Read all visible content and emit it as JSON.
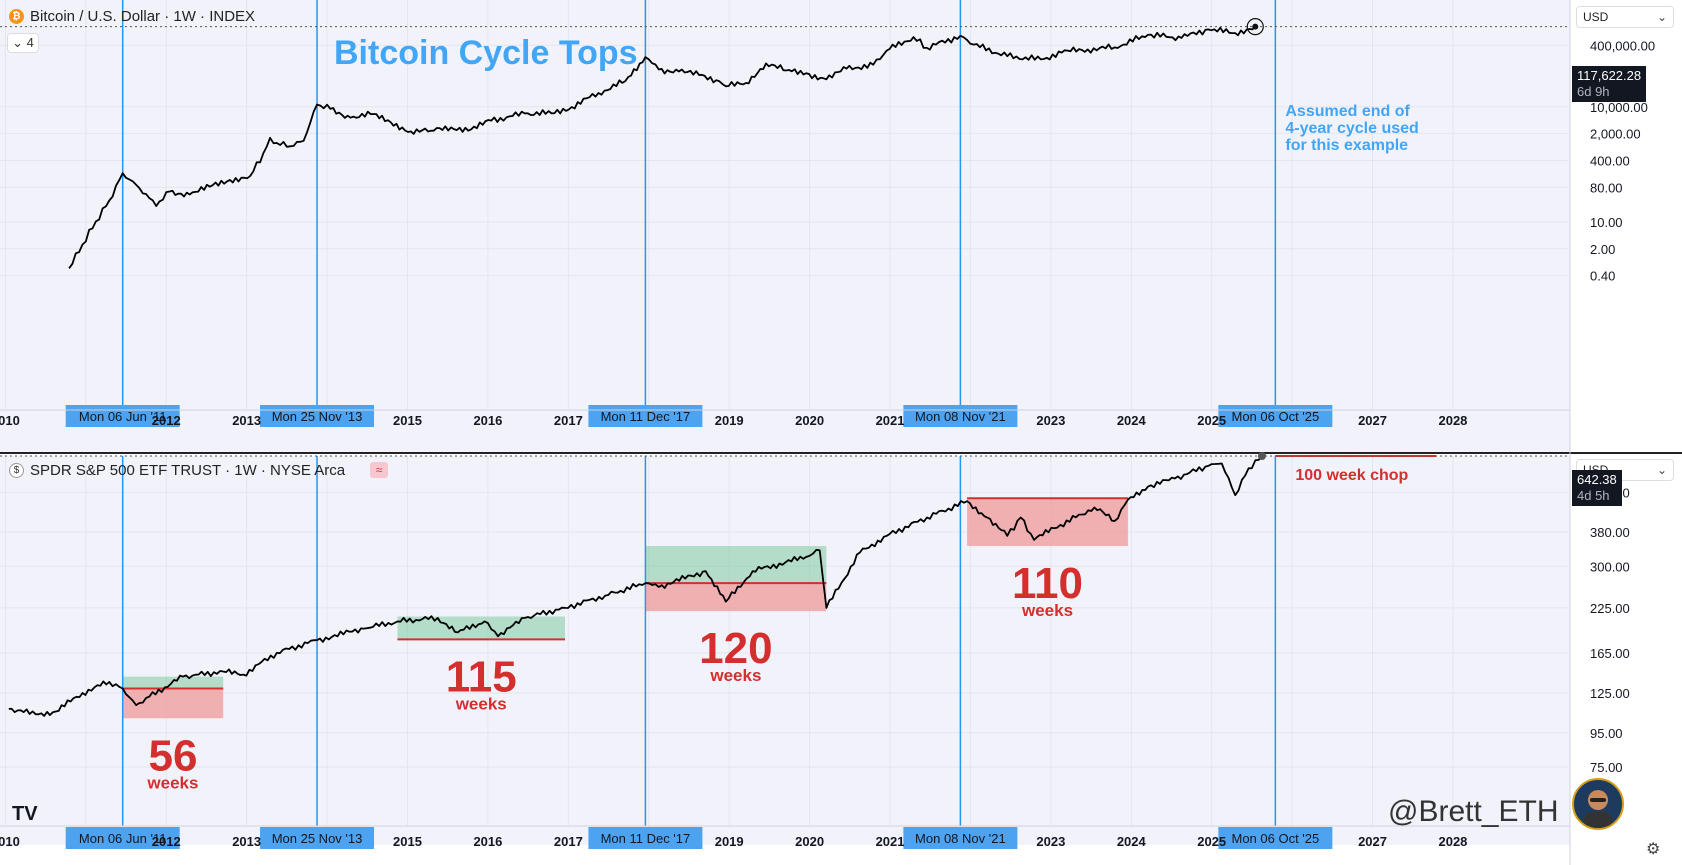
{
  "chart_data": [
    {
      "type": "line",
      "symbol": "Bitcoin / U.S. Dollar · 1W · INDEX",
      "title": "Bitcoin Cycle Tops",
      "y_scale": "log",
      "y_ticks": [
        "400,000.00",
        "10,000.00",
        "2,000.00",
        "400.00",
        "80.00",
        "10.00",
        "2.00",
        "0.40"
      ],
      "x_ticks": [
        "2010",
        "2012",
        "2013",
        "2015",
        "2016",
        "2017",
        "2019",
        "2020",
        "2021",
        "2023",
        "2024",
        "2025",
        "2027",
        "2028"
      ],
      "last_price": "117,622.28",
      "countdown": "6d 9h",
      "currency": "USD",
      "series_points": [
        [
          "2010-10",
          0.06
        ],
        [
          "2010-12",
          0.25
        ],
        [
          "2011-02",
          1.0
        ],
        [
          "2011-04",
          3.5
        ],
        [
          "2011-06",
          18
        ],
        [
          "2011-08",
          9
        ],
        [
          "2011-10",
          4
        ],
        [
          "2011-11",
          2.5
        ],
        [
          "2012-01",
          6
        ],
        [
          "2012-04",
          5
        ],
        [
          "2012-07",
          8
        ],
        [
          "2012-10",
          12
        ],
        [
          "2013-01",
          15
        ],
        [
          "2013-03",
          60
        ],
        [
          "2013-04",
          150
        ],
        [
          "2013-05",
          110
        ],
        [
          "2013-07",
          90
        ],
        [
          "2013-09",
          125
        ],
        [
          "2013-11",
          1100
        ],
        [
          "2014-01",
          850
        ],
        [
          "2014-04",
          500
        ],
        [
          "2014-07",
          620
        ],
        [
          "2014-10",
          380
        ],
        [
          "2015-01",
          220
        ],
        [
          "2015-04",
          230
        ],
        [
          "2015-07",
          280
        ],
        [
          "2015-10",
          250
        ],
        [
          "2016-01",
          420
        ],
        [
          "2016-06",
          650
        ],
        [
          "2016-10",
          650
        ],
        [
          "2017-01",
          950
        ],
        [
          "2017-05",
          2200
        ],
        [
          "2017-09",
          4500
        ],
        [
          "2017-12",
          19000
        ],
        [
          "2018-02",
          9000
        ],
        [
          "2018-05",
          8000
        ],
        [
          "2018-08",
          6500
        ],
        [
          "2018-11",
          4500
        ],
        [
          "2018-12",
          3300
        ],
        [
          "2019-03",
          4000
        ],
        [
          "2019-06",
          13000
        ],
        [
          "2019-09",
          8500
        ],
        [
          "2019-12",
          7200
        ],
        [
          "2020-03",
          5000
        ],
        [
          "2020-06",
          9500
        ],
        [
          "2020-10",
          12000
        ],
        [
          "2020-12",
          28000
        ],
        [
          "2021-04",
          63000
        ],
        [
          "2021-06",
          33000
        ],
        [
          "2021-11",
          68000
        ],
        [
          "2022-01",
          40000
        ],
        [
          "2022-06",
          20000
        ],
        [
          "2022-11",
          16500
        ],
        [
          "2023-03",
          28000
        ],
        [
          "2023-06",
          30000
        ],
        [
          "2023-10",
          34000
        ],
        [
          "2024-03",
          72000
        ],
        [
          "2024-08",
          60000
        ],
        [
          "2024-12",
          100000
        ],
        [
          "2025-04",
          80000
        ],
        [
          "2025-07",
          117622
        ]
      ]
    },
    {
      "type": "line",
      "symbol": "SPDR S&P 500 ETF TRUST · 1W · NYSE Arca",
      "y_ticks": [
        "642.38",
        "500.00",
        "380.00",
        "300.00",
        "225.00",
        "165.00",
        "125.00",
        "95.00",
        "75.00"
      ],
      "x_ticks": [
        "2010",
        "2012",
        "2013",
        "2015",
        "2016",
        "2017",
        "2019",
        "2020",
        "2021",
        "2023",
        "2024",
        "2025",
        "2027",
        "2028"
      ],
      "countdown": "4d 5h",
      "currency": "USD",
      "series_points": [
        [
          "2010-01",
          112
        ],
        [
          "2010-05",
          108
        ],
        [
          "2010-08",
          110
        ],
        [
          "2010-12",
          125
        ],
        [
          "2011-04",
          135
        ],
        [
          "2011-06",
          129
        ],
        [
          "2011-08",
          115
        ],
        [
          "2011-10",
          122
        ],
        [
          "2012-03",
          140
        ],
        [
          "2012-09",
          145
        ],
        [
          "2012-12",
          142
        ],
        [
          "2013-05",
          165
        ],
        [
          "2013-11",
          180
        ],
        [
          "2014-06",
          195
        ],
        [
          "2014-11",
          205
        ],
        [
          "2015-05",
          210
        ],
        [
          "2015-08",
          190
        ],
        [
          "2015-12",
          205
        ],
        [
          "2016-02",
          185
        ],
        [
          "2016-06",
          210
        ],
        [
          "2016-12",
          225
        ],
        [
          "2017-06",
          245
        ],
        [
          "2017-12",
          267
        ],
        [
          "2018-02",
          260
        ],
        [
          "2018-09",
          290
        ],
        [
          "2018-12",
          235
        ],
        [
          "2019-04",
          290
        ],
        [
          "2019-12",
          320
        ],
        [
          "2020-02",
          335
        ],
        [
          "2020-03",
          225
        ],
        [
          "2020-08",
          330
        ],
        [
          "2020-12",
          370
        ],
        [
          "2021-06",
          420
        ],
        [
          "2021-12",
          470
        ],
        [
          "2022-03",
          420
        ],
        [
          "2022-06",
          370
        ],
        [
          "2022-08",
          420
        ],
        [
          "2022-10",
          360
        ],
        [
          "2023-01",
          390
        ],
        [
          "2023-07",
          450
        ],
        [
          "2023-10",
          410
        ],
        [
          "2023-12",
          475
        ],
        [
          "2024-03",
          520
        ],
        [
          "2024-07",
          550
        ],
        [
          "2024-12",
          600
        ],
        [
          "2025-02",
          610
        ],
        [
          "2025-04",
          490
        ],
        [
          "2025-06",
          590
        ],
        [
          "2025-08",
          642.38
        ]
      ],
      "chop_ranges": [
        {
          "start": "2011-06",
          "end": "2012-09",
          "weeks": "56",
          "level": 129,
          "high": 140,
          "low": 105
        },
        {
          "start": "2014-11",
          "end": "2016-12",
          "weeks": "115",
          "level": 181,
          "high": 212,
          "low": 181
        },
        {
          "start": "2017-12",
          "end": "2020-03",
          "weeks": "120",
          "level": 267,
          "high": 345,
          "low": 220
        },
        {
          "start": "2021-12",
          "end": "2023-12",
          "weeks": "110",
          "level": 480,
          "high": 480,
          "low": 345
        },
        {
          "start": "2025-10",
          "end": "2027-10",
          "label": "100 week chop",
          "level": 642.38
        }
      ],
      "weeks_unit": "weeks"
    }
  ],
  "cycle_markers": [
    "Mon 06 Jun '11",
    "Mon 25 Nov '13",
    "Mon 11 Dec '17",
    "Mon 08 Nov '21",
    "Mon 06 Oct '25"
  ],
  "annotation": {
    "line1": "Assumed end of",
    "line2": "4-year cycle used",
    "line3": "for this example"
  },
  "collapse_count": "4",
  "watermark": "@Brett_ETH",
  "colors": {
    "marker": "#2196f3",
    "title": "#42a5f5",
    "red": "#d32f2f",
    "green": "#7fc8a0",
    "pink": "#ef9a9a",
    "plot_bg": "#f2f3fa"
  }
}
